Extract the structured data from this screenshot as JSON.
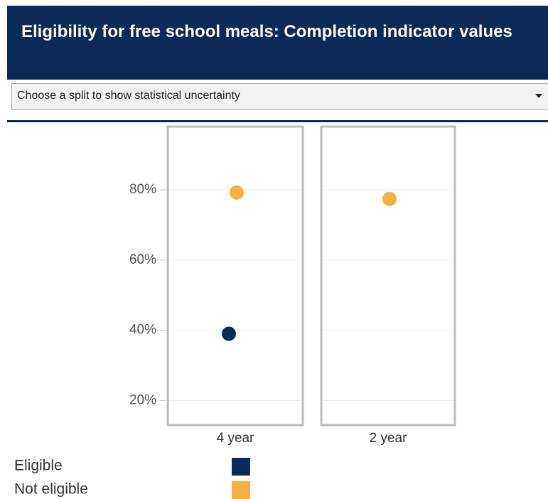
{
  "header": {
    "title": "Eligibility for free school meals: Completion indicator values"
  },
  "dropdown": {
    "label": "Choose a split to show statistical uncertainty"
  },
  "chart_data": {
    "type": "dot",
    "categories": [
      "4 year",
      "2 year"
    ],
    "series": [
      {
        "name": "Eligible",
        "color": "#0b2a56",
        "values": [
          39,
          null
        ]
      },
      {
        "name": "Not eligible",
        "color": "#f5b041",
        "values": [
          79.2,
          77.4
        ]
      }
    ],
    "ylim": [
      13,
      98
    ],
    "yticks": [
      {
        "value": 20,
        "label": "20%"
      },
      {
        "value": 40,
        "label": "40%"
      },
      {
        "value": 60,
        "label": "60%"
      },
      {
        "value": 80,
        "label": "80%"
      }
    ],
    "grid": true
  }
}
